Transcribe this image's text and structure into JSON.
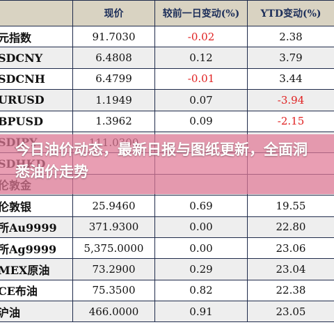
{
  "table": {
    "headers": [
      "",
      "现价",
      "较前一日变动(%)",
      "YTD变动(%)"
    ],
    "rows": [
      {
        "name": "元指数",
        "price": "91.7030",
        "daily": "-0.02",
        "ytd": "2.38",
        "daily_neg": true,
        "ytd_neg": false
      },
      {
        "name": "SDCNY",
        "price": "6.4808",
        "daily": "0.12",
        "ytd": "3.79",
        "daily_neg": false,
        "ytd_neg": false
      },
      {
        "name": "SDCNH",
        "price": "6.4799",
        "daily": "-0.01",
        "ytd": "3.44",
        "daily_neg": true,
        "ytd_neg": false
      },
      {
        "name": "URUSD",
        "price": "1.1949",
        "daily": "0.07",
        "ytd": "-3.94",
        "daily_neg": false,
        "ytd_neg": true
      },
      {
        "name": "BPUSD",
        "price": "1.3962",
        "daily": "0.09",
        "ytd": "-2.15",
        "daily_neg": false,
        "ytd_neg": true
      },
      {
        "name": "SDJPY",
        "price": "111.0300",
        "daily": "",
        "ytd": "",
        "daily_neg": false,
        "ytd_neg": false
      },
      {
        "name": "SDHKD",
        "price": "",
        "daily": "",
        "ytd": "",
        "daily_neg": false,
        "ytd_neg": false
      },
      {
        "name": "伦敦金",
        "price": "",
        "daily": "",
        "ytd": "",
        "daily_neg": false,
        "ytd_neg": false
      },
      {
        "name": "伦敦银",
        "price": "25.9460",
        "daily": "0.69",
        "ytd": "19.55",
        "daily_neg": false,
        "ytd_neg": false
      },
      {
        "name": "所Au9999",
        "price": "371.9300",
        "daily": "0.00",
        "ytd": "22.80",
        "daily_neg": false,
        "ytd_neg": false
      },
      {
        "name": "所Ag9999",
        "price": "5,375.0000",
        "daily": "0.00",
        "ytd": "23.06",
        "daily_neg": false,
        "ytd_neg": false
      },
      {
        "name": "MEX原油",
        "price": "73.2900",
        "daily": "0.29",
        "ytd": "23.04",
        "daily_neg": false,
        "ytd_neg": false
      },
      {
        "name": "CE布油",
        "price": "75.3500",
        "daily": "0.82",
        "ytd": "22.38",
        "daily_neg": false,
        "ytd_neg": false
      },
      {
        "name": "沪油",
        "price": "466.0000",
        "daily": "0.91",
        "ytd": "23.05",
        "daily_neg": false,
        "ytd_neg": false
      }
    ]
  },
  "overlay": {
    "title": "今日油价动态，最新日报与图纸更新，全面洞悉油价走势"
  },
  "colors": {
    "header_bg": "#d9d3c2",
    "negative": "#e02020",
    "overlay": "#e17896"
  }
}
